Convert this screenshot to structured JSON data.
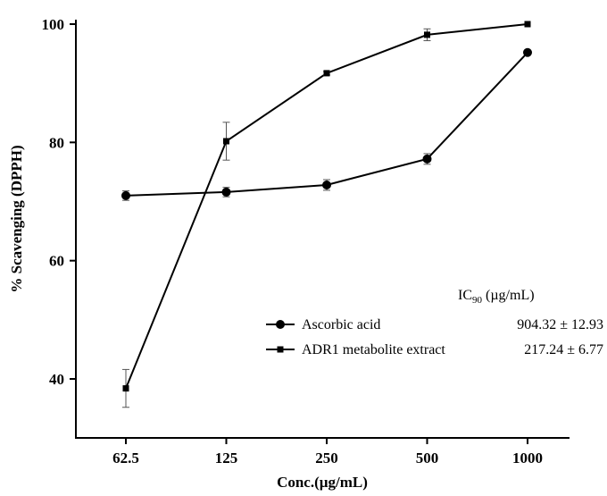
{
  "chart_data": {
    "type": "line",
    "xlabel": "Conc.(µg/mL)",
    "ylabel": "% Scavenging (DPPH)",
    "categories": [
      "62.5",
      "125",
      "250",
      "500",
      "1000"
    ],
    "x_scale": "log2 (categorical, evenly spaced)",
    "ylim": [
      30,
      100
    ],
    "yticks": [
      "40",
      "60",
      "80",
      "100"
    ],
    "grid": false,
    "legend_position": "lower-right",
    "legend_header": "IC",
    "legend_header_subscript": "90",
    "legend_header_unit": " (µg/mL)",
    "series": [
      {
        "name": "Ascorbic acid",
        "marker": "circle",
        "ic90": "904.32 ± 12.93",
        "values": [
          71.0,
          71.6,
          72.8,
          77.2,
          95.2
        ],
        "errors": [
          0.8,
          0.8,
          0.9,
          0.9,
          0.3
        ]
      },
      {
        "name": "ADR1 metabolite extract",
        "marker": "square",
        "ic90": "217.24 ± 6.77",
        "values": [
          38.4,
          80.2,
          91.7,
          98.2,
          100.0
        ],
        "errors": [
          3.2,
          3.2,
          0.3,
          1.0,
          0.2
        ]
      }
    ]
  }
}
